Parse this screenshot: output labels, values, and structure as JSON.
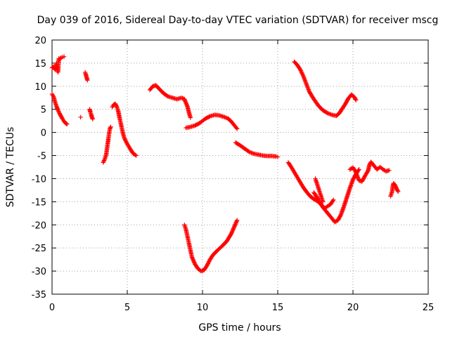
{
  "chart_data": {
    "type": "scatter",
    "title": "Day 039 of 2016, Sidereal Day-to-day VTEC variation (SDTVAR) for receiver mscg",
    "xlabel": "GPS time / hours",
    "ylabel": "SDTVAR / TECUs",
    "xlim": [
      0,
      25
    ],
    "ylim": [
      -35,
      20
    ],
    "xticks": [
      0,
      5,
      10,
      15,
      20,
      25
    ],
    "yticks": [
      -35,
      -30,
      -25,
      -20,
      -15,
      -10,
      -5,
      0,
      5,
      10,
      15,
      20
    ],
    "grid": true,
    "marker": "+",
    "color": "#ff0000",
    "series": [
      {
        "name": "s1",
        "points": [
          [
            0.0,
            14.0
          ],
          [
            0.1,
            14.2
          ],
          [
            0.2,
            13.6
          ],
          [
            0.3,
            15.0
          ],
          [
            0.35,
            13.5
          ],
          [
            0.4,
            13.0
          ],
          [
            0.45,
            16.0
          ],
          [
            0.5,
            15.8
          ],
          [
            0.6,
            16.2
          ],
          [
            0.7,
            16.3
          ],
          [
            0.8,
            16.4
          ]
        ]
      },
      {
        "name": "s2",
        "points": [
          [
            0.0,
            8.3
          ],
          [
            0.1,
            7.8
          ],
          [
            0.2,
            6.6
          ],
          [
            0.3,
            5.6
          ],
          [
            0.4,
            4.8
          ],
          [
            0.5,
            4.1
          ],
          [
            0.6,
            3.5
          ],
          [
            0.7,
            2.9
          ],
          [
            0.8,
            2.4
          ],
          [
            0.9,
            2.0
          ],
          [
            1.0,
            1.8
          ]
        ]
      },
      {
        "name": "s3",
        "points": [
          [
            1.9,
            3.3
          ]
        ]
      },
      {
        "name": "s4",
        "points": [
          [
            2.2,
            13.0
          ],
          [
            2.25,
            12.5
          ],
          [
            2.3,
            11.9
          ],
          [
            2.35,
            11.3
          ]
        ]
      },
      {
        "name": "s5",
        "points": [
          [
            2.5,
            5.0
          ],
          [
            2.55,
            4.4
          ],
          [
            2.6,
            3.9
          ],
          [
            2.65,
            3.3
          ],
          [
            2.7,
            2.9
          ]
        ]
      },
      {
        "name": "s6",
        "points": [
          [
            3.4,
            -6.5
          ],
          [
            3.5,
            -5.8
          ],
          [
            3.6,
            -4.8
          ],
          [
            3.65,
            -3.6
          ],
          [
            3.7,
            -2.4
          ],
          [
            3.75,
            -1.3
          ],
          [
            3.8,
            0.0
          ],
          [
            3.85,
            0.8
          ],
          [
            3.9,
            1.2
          ]
        ]
      },
      {
        "name": "s7",
        "points": [
          [
            4.0,
            5.5
          ],
          [
            4.1,
            6.0
          ],
          [
            4.2,
            6.2
          ],
          [
            4.3,
            5.6
          ],
          [
            4.4,
            4.6
          ],
          [
            4.5,
            3.0
          ],
          [
            4.6,
            1.5
          ],
          [
            4.7,
            0.0
          ],
          [
            4.8,
            -1.2
          ],
          [
            5.0,
            -2.5
          ],
          [
            5.2,
            -3.6
          ],
          [
            5.4,
            -4.6
          ],
          [
            5.6,
            -5.0
          ]
        ]
      },
      {
        "name": "s8",
        "points": [
          [
            6.5,
            9.2
          ],
          [
            6.7,
            10.0
          ],
          [
            6.9,
            10.2
          ],
          [
            7.1,
            9.5
          ],
          [
            7.4,
            8.5
          ],
          [
            7.7,
            7.8
          ],
          [
            8.0,
            7.5
          ],
          [
            8.3,
            7.2
          ],
          [
            8.6,
            7.5
          ],
          [
            8.8,
            7.2
          ],
          [
            9.0,
            5.6
          ],
          [
            9.1,
            4.3
          ],
          [
            9.2,
            3.2
          ]
        ]
      },
      {
        "name": "s9",
        "points": [
          [
            8.9,
            1.0
          ],
          [
            9.2,
            1.2
          ],
          [
            9.5,
            1.5
          ],
          [
            9.8,
            2.0
          ],
          [
            10.0,
            2.5
          ],
          [
            10.2,
            3.0
          ],
          [
            10.5,
            3.5
          ],
          [
            10.8,
            3.8
          ],
          [
            11.1,
            3.7
          ],
          [
            11.4,
            3.4
          ],
          [
            11.7,
            3.0
          ],
          [
            11.9,
            2.4
          ],
          [
            12.1,
            1.6
          ],
          [
            12.3,
            0.8
          ]
        ]
      },
      {
        "name": "s10",
        "points": [
          [
            8.8,
            -20.0
          ],
          [
            8.9,
            -21.0
          ],
          [
            9.0,
            -22.5
          ],
          [
            9.1,
            -24.0
          ],
          [
            9.2,
            -25.5
          ],
          [
            9.3,
            -27.0
          ],
          [
            9.5,
            -28.5
          ],
          [
            9.7,
            -29.5
          ],
          [
            9.9,
            -30.0
          ],
          [
            10.1,
            -29.8
          ],
          [
            10.3,
            -28.8
          ],
          [
            10.5,
            -27.5
          ],
          [
            10.7,
            -26.5
          ],
          [
            11.0,
            -25.5
          ],
          [
            11.3,
            -24.6
          ],
          [
            11.6,
            -23.6
          ],
          [
            11.9,
            -22.0
          ],
          [
            12.1,
            -20.5
          ],
          [
            12.3,
            -19.0
          ]
        ]
      },
      {
        "name": "s11",
        "points": [
          [
            12.2,
            -2.2
          ],
          [
            12.5,
            -2.8
          ],
          [
            12.8,
            -3.5
          ],
          [
            13.1,
            -4.2
          ],
          [
            13.4,
            -4.6
          ],
          [
            13.7,
            -4.8
          ],
          [
            14.0,
            -5.0
          ],
          [
            14.3,
            -5.1
          ],
          [
            14.6,
            -5.1
          ],
          [
            14.9,
            -5.2
          ],
          [
            15.0,
            -5.3
          ]
        ]
      },
      {
        "name": "s12",
        "points": [
          [
            16.1,
            15.3
          ],
          [
            16.3,
            14.6
          ],
          [
            16.5,
            13.6
          ],
          [
            16.7,
            12.2
          ],
          [
            16.9,
            10.5
          ],
          [
            17.1,
            8.8
          ],
          [
            17.4,
            7.2
          ],
          [
            17.7,
            5.8
          ],
          [
            18.0,
            4.8
          ],
          [
            18.3,
            4.2
          ],
          [
            18.6,
            3.8
          ],
          [
            18.9,
            3.6
          ],
          [
            19.1,
            4.2
          ],
          [
            19.3,
            5.2
          ],
          [
            19.5,
            6.2
          ],
          [
            19.7,
            7.4
          ],
          [
            19.9,
            8.2
          ],
          [
            20.1,
            7.6
          ],
          [
            20.2,
            7.0
          ]
        ]
      },
      {
        "name": "s13",
        "points": [
          [
            15.7,
            -6.5
          ],
          [
            15.9,
            -7.5
          ],
          [
            16.1,
            -8.6
          ],
          [
            16.3,
            -9.7
          ],
          [
            16.5,
            -10.8
          ],
          [
            16.7,
            -11.9
          ],
          [
            16.9,
            -12.8
          ],
          [
            17.1,
            -13.6
          ],
          [
            17.3,
            -14.2
          ],
          [
            17.6,
            -14.8
          ],
          [
            17.8,
            -15.3
          ],
          [
            18.0,
            -16.0
          ],
          [
            18.1,
            -16.5
          ],
          [
            18.3,
            -16.0
          ],
          [
            18.5,
            -15.6
          ],
          [
            18.7,
            -14.6
          ]
        ]
      },
      {
        "name": "s14",
        "points": [
          [
            17.4,
            -13.0
          ],
          [
            17.6,
            -14.0
          ],
          [
            17.8,
            -15.2
          ],
          [
            18.0,
            -16.2
          ],
          [
            18.2,
            -17.0
          ],
          [
            18.4,
            -17.8
          ],
          [
            18.6,
            -18.6
          ],
          [
            18.8,
            -19.4
          ],
          [
            19.0,
            -19.0
          ],
          [
            19.2,
            -17.8
          ],
          [
            19.4,
            -16.0
          ],
          [
            19.6,
            -14.0
          ],
          [
            19.8,
            -12.0
          ],
          [
            20.0,
            -10.2
          ],
          [
            20.2,
            -9.0
          ],
          [
            20.4,
            -8.0
          ]
        ]
      },
      {
        "name": "s15",
        "points": [
          [
            17.5,
            -10.0
          ],
          [
            17.6,
            -11.0
          ],
          [
            17.7,
            -12.0
          ],
          [
            17.8,
            -13.0
          ],
          [
            17.9,
            -14.0
          ],
          [
            18.0,
            -15.0
          ]
        ]
      },
      {
        "name": "s16",
        "points": [
          [
            19.8,
            -8.0
          ],
          [
            20.0,
            -7.6
          ],
          [
            20.2,
            -8.6
          ],
          [
            20.4,
            -10.4
          ],
          [
            20.6,
            -10.6
          ],
          [
            20.8,
            -9.4
          ],
          [
            21.0,
            -8.3
          ],
          [
            21.1,
            -7.0
          ],
          [
            21.2,
            -6.4
          ],
          [
            21.4,
            -7.2
          ],
          [
            21.6,
            -8.0
          ],
          [
            21.8,
            -7.5
          ],
          [
            22.0,
            -8.0
          ],
          [
            22.2,
            -8.4
          ],
          [
            22.4,
            -8.2
          ]
        ]
      },
      {
        "name": "s17",
        "points": [
          [
            22.5,
            -13.8
          ],
          [
            22.6,
            -12.8
          ],
          [
            22.65,
            -11.6
          ],
          [
            22.7,
            -11.0
          ],
          [
            22.8,
            -11.4
          ],
          [
            22.9,
            -12.2
          ],
          [
            23.0,
            -12.8
          ]
        ]
      }
    ]
  }
}
